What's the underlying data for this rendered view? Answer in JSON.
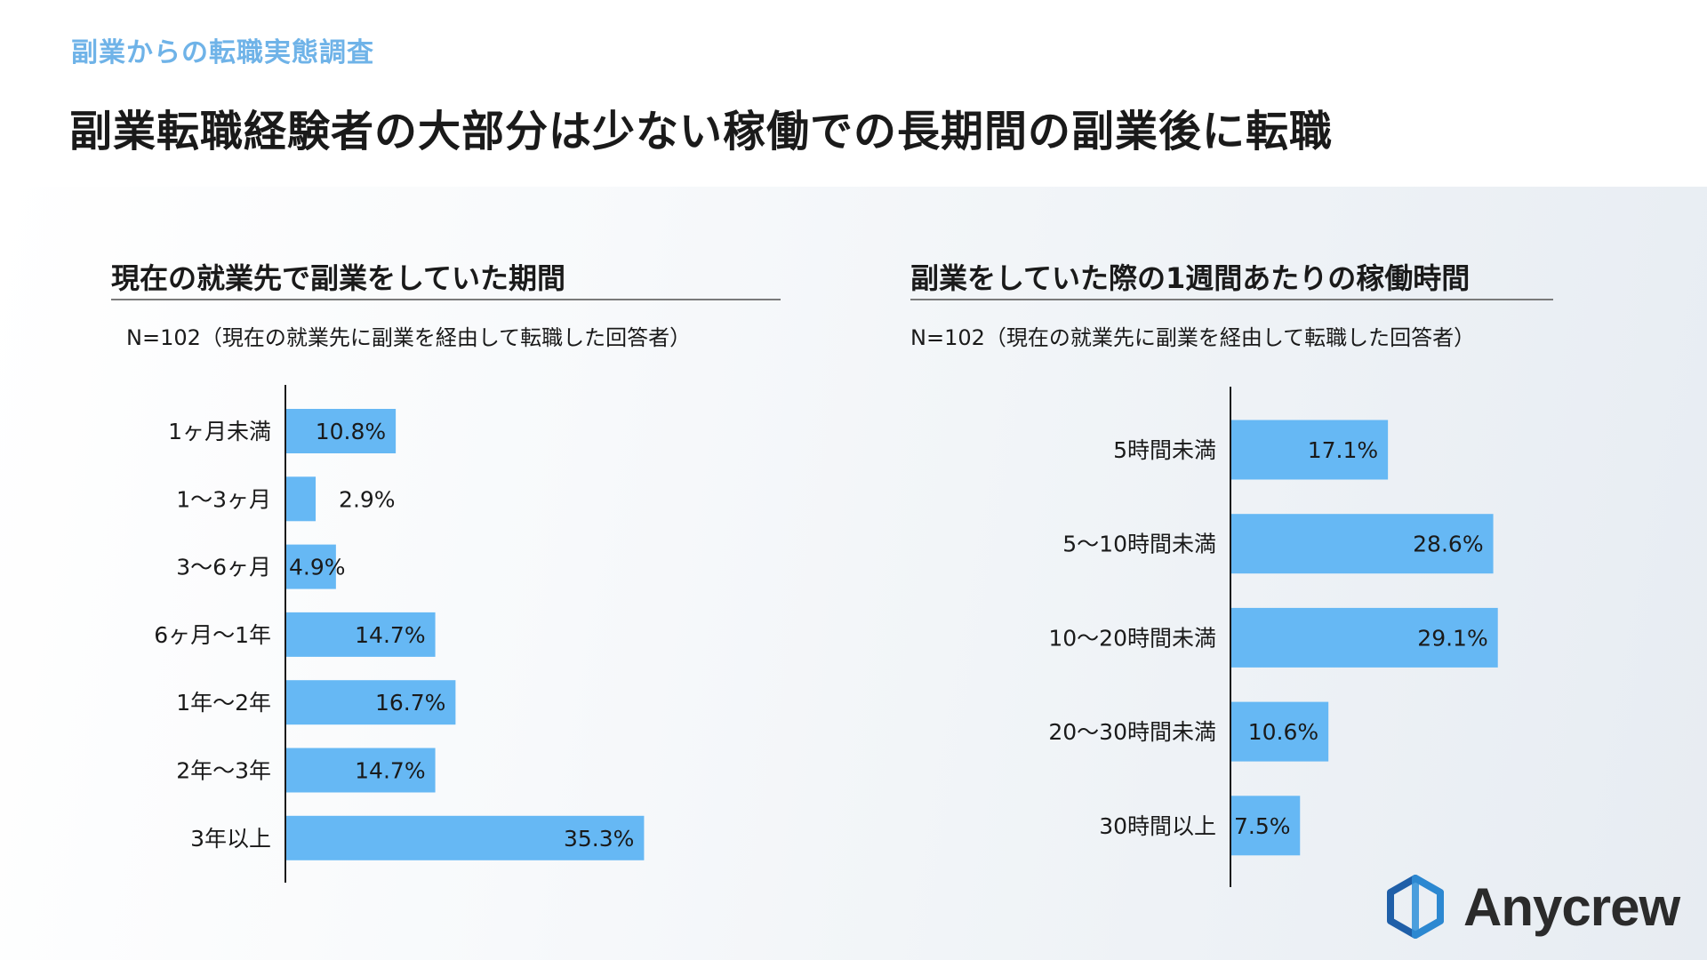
{
  "header": {
    "eyebrow": "副業からの転職実態調査",
    "headline": "副業転職経験者の大部分は少ない稼働での長期間の副業後に転職"
  },
  "chart_data": [
    {
      "type": "bar",
      "orientation": "horizontal",
      "title": "現在の就業先で副業をしていた期間",
      "subtitle": "N=102（現在の就業先に副業を経由して転職した回答者）",
      "categories": [
        "1ヶ月未満",
        "1〜3ヶ月",
        "3〜6ヶ月",
        "6ヶ月〜1年",
        "1年〜2年",
        "2年〜3年",
        "3年以上"
      ],
      "values": [
        10.8,
        2.9,
        4.9,
        14.7,
        16.7,
        14.7,
        35.3
      ],
      "value_labels": [
        "10.8%",
        "2.9%",
        "4.9%",
        "14.7%",
        "16.7%",
        "14.7%",
        "35.3%"
      ],
      "unit": "%",
      "bar_color": "#66b8f4"
    },
    {
      "type": "bar",
      "orientation": "horizontal",
      "title": "副業をしていた際の1週間あたりの稼働時間",
      "subtitle": "N=102（現在の就業先に副業を経由して転職した回答者）",
      "categories": [
        "5時間未満",
        "5〜10時間未満",
        "10〜20時間未満",
        "20〜30時間未満",
        "30時間以上"
      ],
      "values": [
        17.1,
        28.6,
        29.1,
        10.6,
        7.5
      ],
      "value_labels": [
        "17.1%",
        "28.6%",
        "29.1%",
        "10.6%",
        "7.5%"
      ],
      "unit": "%",
      "bar_color": "#66b8f4"
    }
  ],
  "brand": {
    "name": "Anycrew",
    "icon": "hexagon-logo-icon",
    "color": "#1f5fa8"
  }
}
